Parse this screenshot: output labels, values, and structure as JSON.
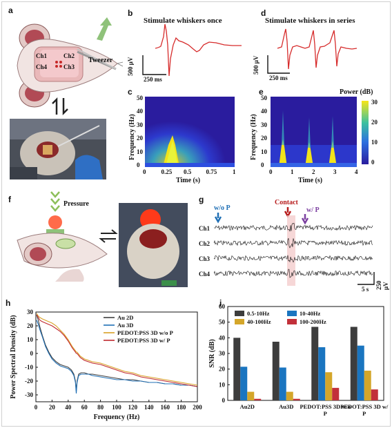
{
  "panels": {
    "a": {
      "label": "a",
      "channels": [
        "Ch1",
        "Ch2",
        "Ch4",
        "Ch3"
      ],
      "tweezer": "Tweezer"
    },
    "b": {
      "label": "b",
      "title": "Stimulate whiskers once",
      "scale_v": "500 μV",
      "scale_t": "250 ms"
    },
    "c": {
      "label": "c",
      "ylabel": "Frequency (Hz)",
      "xlabel": "Time (s)",
      "yticks": [
        "50",
        "40",
        "30",
        "20",
        "10",
        "0"
      ],
      "xticks": [
        "0",
        "0.25",
        "0.5",
        "0.75",
        "1"
      ]
    },
    "d": {
      "label": "d",
      "title": "Stimulate whiskers in series",
      "scale_v": "500 μV",
      "scale_t": "250 ms"
    },
    "e": {
      "label": "e",
      "ylabel": "Frequency (Hz)",
      "xlabel": "Time (s)",
      "colorbar_title": "Power (dB)",
      "yticks": [
        "50",
        "40",
        "30",
        "20",
        "10",
        "0"
      ],
      "xticks": [
        "0",
        "1",
        "2",
        "3",
        "4"
      ],
      "cticks": [
        "30",
        "20",
        "10",
        "0"
      ]
    },
    "f": {
      "label": "f",
      "pressure": "Pressure"
    },
    "g": {
      "label": "g",
      "wop": "w/o P",
      "contact": "Contact",
      "wp": "w/ P",
      "channels": [
        "Ch1",
        "Ch2",
        "Ch3",
        "Ch4"
      ],
      "scale_v": "250 μV",
      "scale_t": "5 s"
    },
    "h": {
      "label": "h"
    },
    "i": {
      "label": "i"
    }
  },
  "colors": {
    "trace_red": "#d62a2a",
    "contact_red": "#b71c1c",
    "wop_blue": "#1f6fb5",
    "wp_purple": "#7b3fa0",
    "au2d": "#404040",
    "au3d": "#1f6fb5",
    "pedot_wop": "#d9a025",
    "pedot_wp": "#c0272d",
    "bar_dark": "#3d3d3d",
    "bar_blue": "#1a75c0",
    "bar_gold": "#d4a62a",
    "bar_red": "#c2303a"
  },
  "chart_data": [
    {
      "id": "h",
      "type": "line",
      "xlabel": "Frequency (Hz)",
      "ylabel": "Power Spectral Density (dB)",
      "xlim": [
        0,
        200
      ],
      "ylim": [
        -35,
        30
      ],
      "xticks": [
        0,
        20,
        40,
        60,
        80,
        100,
        120,
        140,
        160,
        180,
        200
      ],
      "yticks": [
        30,
        20,
        10,
        0,
        -10,
        -20,
        -30
      ],
      "legend_position": "top-right",
      "series": [
        {
          "name": "Au 2D",
          "x": [
            1,
            3,
            5,
            8,
            12,
            16,
            20,
            25,
            30,
            35,
            40,
            44,
            47,
            49,
            50,
            51,
            53,
            56,
            60,
            65,
            70,
            80,
            90,
            100,
            110,
            120,
            130,
            140,
            150,
            160,
            170,
            180,
            190,
            200
          ],
          "y": [
            28,
            24,
            19,
            13,
            6,
            1,
            -3,
            -6,
            -8,
            -9,
            -10,
            -12,
            -15,
            -20,
            -27,
            -20,
            -15,
            -14,
            -14,
            -15,
            -15,
            -16,
            -17,
            -18,
            -19,
            -19,
            -20,
            -21,
            -21,
            -22,
            -22,
            -23,
            -23,
            -24
          ]
        },
        {
          "name": "Au 3D",
          "x": [
            1,
            3,
            5,
            8,
            12,
            16,
            20,
            25,
            30,
            35,
            40,
            44,
            47,
            49,
            50,
            51,
            53,
            56,
            60,
            65,
            70,
            80,
            90,
            100,
            110,
            120,
            130,
            140,
            150,
            160,
            170,
            180,
            190,
            200
          ],
          "y": [
            24,
            21,
            17,
            12,
            5,
            0,
            -4,
            -7,
            -9,
            -10,
            -11,
            -13,
            -16,
            -21,
            -29,
            -21,
            -16,
            -15,
            -15,
            -15,
            -16,
            -17,
            -18,
            -19,
            -19,
            -20,
            -20,
            -21,
            -21,
            -22,
            -22,
            -23,
            -23,
            -24
          ]
        },
        {
          "name": "PEDOT:PSS 3D w/o P",
          "x": [
            1,
            3,
            5,
            8,
            12,
            16,
            20,
            25,
            30,
            35,
            40,
            45,
            49,
            50,
            51,
            55,
            60,
            65,
            70,
            80,
            90,
            100,
            110,
            120,
            130,
            140,
            150,
            160,
            170,
            180,
            190,
            200
          ],
          "y": [
            29,
            27,
            26,
            25,
            24,
            23,
            22,
            20,
            17,
            14,
            10,
            5,
            2,
            1,
            1,
            -2,
            -4,
            -5,
            -6,
            -7,
            -9,
            -11,
            -13,
            -14,
            -16,
            -17,
            -18,
            -19,
            -20,
            -21,
            -22,
            -23
          ]
        },
        {
          "name": "PEDOT:PSS 3D w/ P",
          "x": [
            1,
            3,
            5,
            8,
            12,
            16,
            20,
            25,
            30,
            35,
            40,
            45,
            49,
            50,
            51,
            55,
            60,
            65,
            70,
            80,
            90,
            100,
            110,
            120,
            130,
            140,
            150,
            160,
            170,
            180,
            190,
            200
          ],
          "y": [
            28,
            26,
            24,
            23,
            22,
            21,
            20,
            18,
            16,
            13,
            9,
            4,
            1,
            0,
            0,
            -3,
            -5,
            -6,
            -7,
            -8,
            -10,
            -12,
            -14,
            -15,
            -17,
            -18,
            -19,
            -20,
            -21,
            -22,
            -23,
            -24
          ]
        }
      ]
    },
    {
      "id": "i",
      "type": "bar",
      "ylabel": "SNR (dB)",
      "ylim": [
        0,
        60
      ],
      "yticks": [
        0,
        10,
        20,
        30,
        40,
        50,
        60
      ],
      "categories": [
        "Au2D",
        "Au3D",
        "PEDOT:PSS 3D w/o P",
        "PEDOT:PSS 3D w/ P"
      ],
      "legend_position": "top",
      "series": [
        {
          "name": "0.5-10Hz",
          "values": [
            40,
            37.5,
            47,
            47
          ]
        },
        {
          "name": "10-40Hz",
          "values": [
            21.5,
            21,
            34,
            35
          ]
        },
        {
          "name": "40-100Hz",
          "values": [
            5.5,
            5.5,
            18,
            19
          ]
        },
        {
          "name": "100-200Hz",
          "values": [
            1,
            1,
            8,
            7
          ]
        }
      ]
    }
  ]
}
